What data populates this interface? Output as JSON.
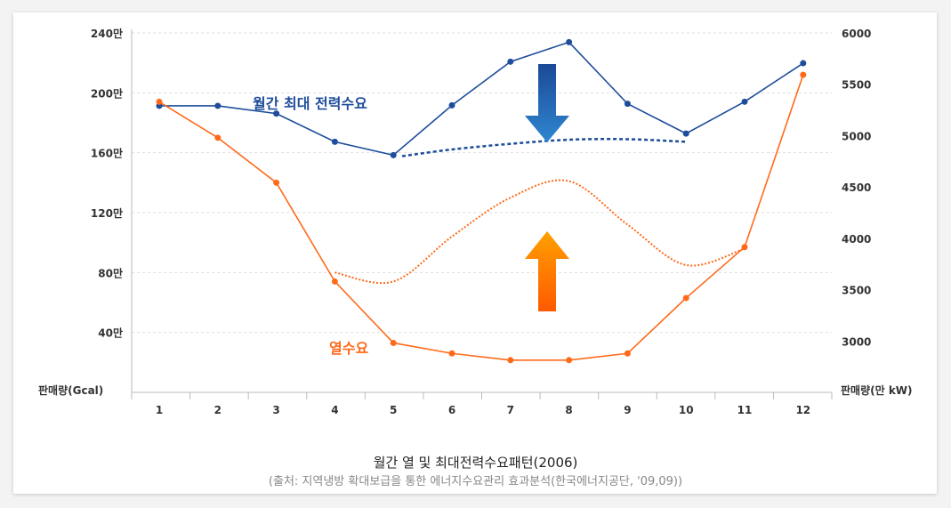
{
  "chart_data": {
    "type": "line",
    "title": "월간 열 및 최대전력수요패턴(2006)",
    "subtitle": "(출처: 지역냉방 확대보급을 통한 에너지수요관리 효과분석(한국에너지공단, '09,09))",
    "categories": [
      "1",
      "2",
      "3",
      "4",
      "5",
      "6",
      "7",
      "8",
      "9",
      "10",
      "11",
      "12"
    ],
    "ylabel_left": "판매량(Gcal)",
    "ylabel_right": "판매량(만 kW)",
    "ylim_left": [
      0,
      240
    ],
    "ylim_right": [
      2500,
      6000
    ],
    "yticks_left": [
      {
        "v": 40,
        "label": "40만"
      },
      {
        "v": 80,
        "label": "80만"
      },
      {
        "v": 120,
        "label": "120만"
      },
      {
        "v": 160,
        "label": "160만"
      },
      {
        "v": 200,
        "label": "200만"
      },
      {
        "v": 240,
        "label": "240만"
      }
    ],
    "yticks_right": [
      {
        "v": 3000,
        "label": "3000"
      },
      {
        "v": 3500,
        "label": "3500"
      },
      {
        "v": 4000,
        "label": "4000"
      },
      {
        "v": 4500,
        "label": "4500"
      },
      {
        "v": 5000,
        "label": "5000"
      },
      {
        "v": 5500,
        "label": "5500"
      },
      {
        "v": 6000,
        "label": "6000"
      }
    ],
    "grid": true,
    "series": [
      {
        "name": "월간 최대 전력수요",
        "axis": "right",
        "color": "#1e4d9b",
        "values": [
          5290,
          5290,
          5215,
          4940,
          4810,
          5295,
          5720,
          5910,
          5310,
          5020,
          5330,
          5705
        ]
      },
      {
        "name": "열수요",
        "axis": "left",
        "color": "#ff6a1a",
        "values": [
          194,
          170,
          140,
          74,
          33,
          26,
          21.5,
          21.5,
          26,
          63,
          97,
          212
        ]
      }
    ],
    "annotations": {
      "power_dotted": {
        "axis": "right",
        "color": "#1e4d9b",
        "x": [
          5.15,
          6,
          7,
          8,
          9,
          10
        ],
        "values": [
          4800,
          4865,
          4920,
          4960,
          4965,
          4940
        ]
      },
      "heat_dotted": {
        "axis": "left",
        "color": "#ff6a1a",
        "x": [
          4,
          5,
          6,
          7,
          8,
          9,
          10,
          11
        ],
        "values": [
          80,
          74,
          104,
          130,
          141,
          112,
          85,
          96
        ]
      },
      "down_arrow_color": "#2a7bc8",
      "up_arrow_color": "#ff8a00"
    }
  }
}
